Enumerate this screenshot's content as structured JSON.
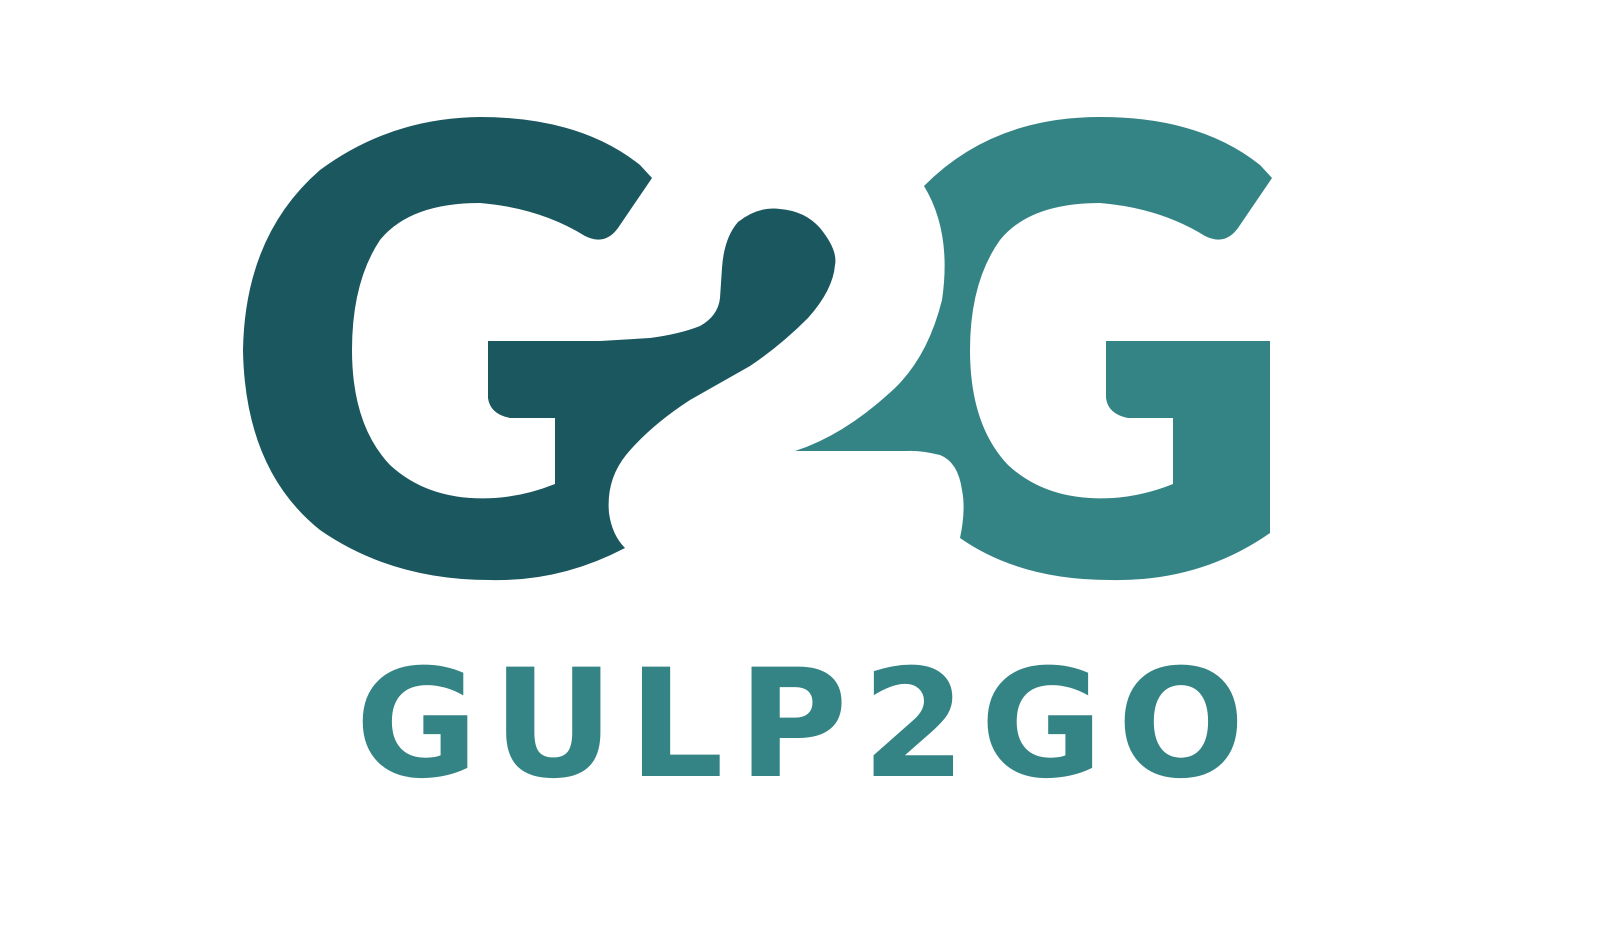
{
  "brand": {
    "monogram_label": "G2G",
    "wordmark": "GULP2GO",
    "colors": {
      "dark_teal": "#1B575F",
      "light_teal": "#358485",
      "background": "#FFFFFF"
    }
  }
}
